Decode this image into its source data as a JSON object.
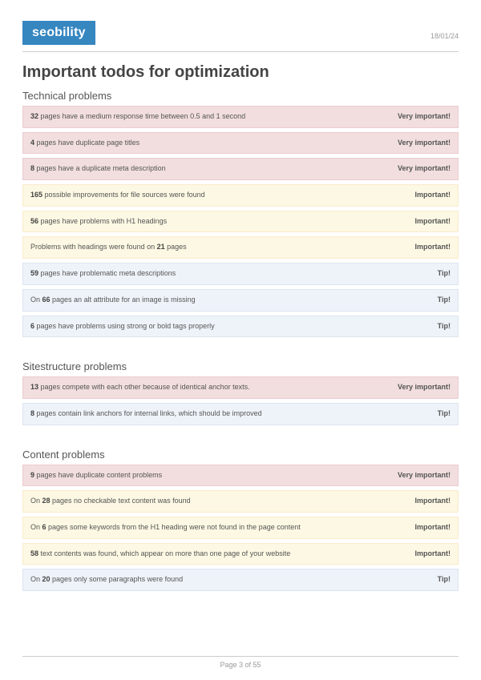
{
  "header": {
    "logo_text": "seobility",
    "date": "18/01/24"
  },
  "title": "Important todos for optimization",
  "severity_labels": {
    "very": "Very important!",
    "imp": "Important!",
    "tip": "Tip!"
  },
  "colors": {
    "very_bg": "#f2dede",
    "very_border": "#ebccd1",
    "imp_bg": "#fcf8e3",
    "imp_border": "#faebcc",
    "tip_bg": "#eef3f9",
    "tip_border": "#dbe5f0",
    "logo_bg": "#3686c0"
  },
  "sections": [
    {
      "heading": "Technical problems",
      "items": [
        {
          "severity": "very",
          "parts": [
            {
              "b": "32"
            },
            {
              "t": " pages have a medium response time between 0.5 and 1 second"
            }
          ]
        },
        {
          "severity": "very",
          "parts": [
            {
              "b": "4"
            },
            {
              "t": " pages have duplicate page titles"
            }
          ]
        },
        {
          "severity": "very",
          "parts": [
            {
              "b": "8"
            },
            {
              "t": " pages have a duplicate meta description"
            }
          ]
        },
        {
          "severity": "imp",
          "parts": [
            {
              "b": "165"
            },
            {
              "t": " possible improvements for file sources were found"
            }
          ]
        },
        {
          "severity": "imp",
          "parts": [
            {
              "b": "56"
            },
            {
              "t": " pages have problems with H1 headings"
            }
          ]
        },
        {
          "severity": "imp",
          "parts": [
            {
              "t": "Problems with headings were found on "
            },
            {
              "b": "21"
            },
            {
              "t": " pages"
            }
          ]
        },
        {
          "severity": "tip",
          "parts": [
            {
              "b": "59"
            },
            {
              "t": " pages have problematic meta descriptions"
            }
          ]
        },
        {
          "severity": "tip",
          "parts": [
            {
              "t": "On "
            },
            {
              "b": "66"
            },
            {
              "t": " pages an alt attribute for an image is missing"
            }
          ]
        },
        {
          "severity": "tip",
          "parts": [
            {
              "b": "6"
            },
            {
              "t": " pages have problems using strong or bold tags properly"
            }
          ]
        }
      ]
    },
    {
      "heading": "Sitestructure problems",
      "items": [
        {
          "severity": "very",
          "parts": [
            {
              "b": "13"
            },
            {
              "t": " pages compete with each other because of identical anchor texts."
            }
          ]
        },
        {
          "severity": "tip",
          "parts": [
            {
              "b": "8"
            },
            {
              "t": " pages contain link anchors for internal links, which should be improved"
            }
          ]
        }
      ]
    },
    {
      "heading": "Content problems",
      "items": [
        {
          "severity": "very",
          "parts": [
            {
              "b": "9"
            },
            {
              "t": " pages have duplicate content problems"
            }
          ]
        },
        {
          "severity": "imp",
          "parts": [
            {
              "t": "On "
            },
            {
              "b": "28"
            },
            {
              "t": " pages no checkable text content was found"
            }
          ]
        },
        {
          "severity": "imp",
          "parts": [
            {
              "t": "On "
            },
            {
              "b": "6"
            },
            {
              "t": " pages some keywords from the H1 heading were not found in the page content"
            }
          ]
        },
        {
          "severity": "imp",
          "parts": [
            {
              "b": "58"
            },
            {
              "t": " text contents was found, which appear on more than one page of your website"
            }
          ]
        },
        {
          "severity": "tip",
          "parts": [
            {
              "t": "On "
            },
            {
              "b": "20"
            },
            {
              "t": " pages only some paragraphs were found"
            }
          ]
        }
      ]
    }
  ],
  "footer": {
    "page_label": "Page 3 of 55"
  }
}
